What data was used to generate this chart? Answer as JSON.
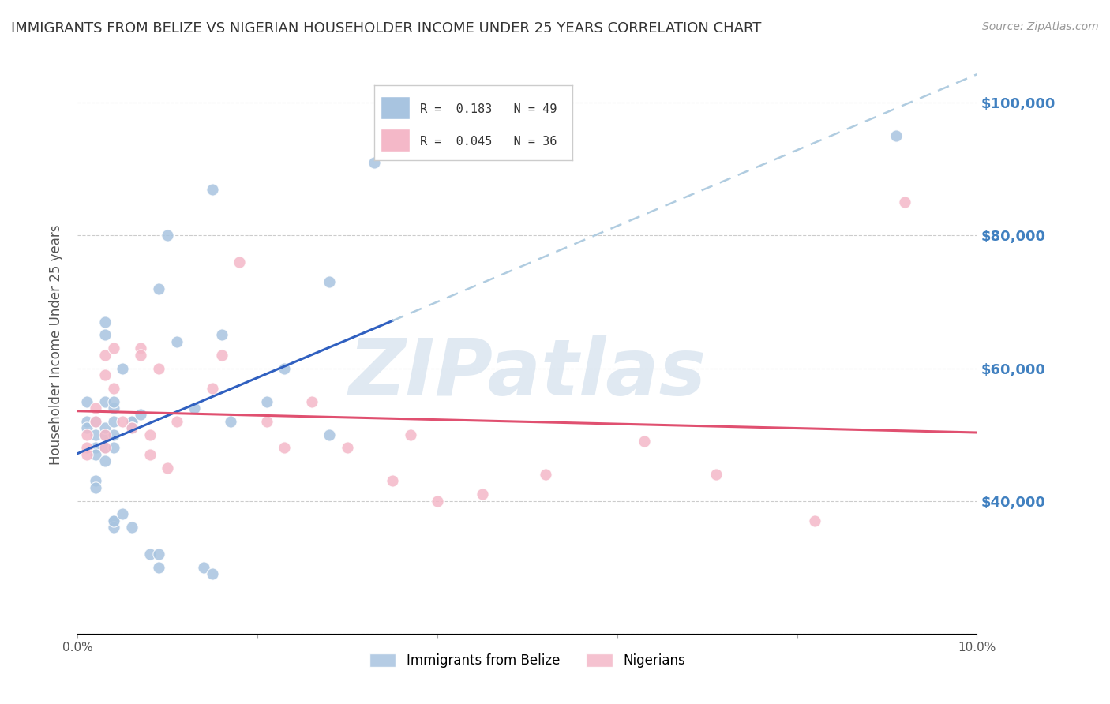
{
  "title": "IMMIGRANTS FROM BELIZE VS NIGERIAN HOUSEHOLDER INCOME UNDER 25 YEARS CORRELATION CHART",
  "source": "Source: ZipAtlas.com",
  "xlabel": "",
  "ylabel": "Householder Income Under 25 years",
  "legend_belize": "Immigrants from Belize",
  "legend_nigerian": "Nigerians",
  "R_belize": 0.183,
  "N_belize": 49,
  "R_nigerian": 0.045,
  "N_nigerian": 36,
  "xlim": [
    0.0,
    0.1
  ],
  "ylim": [
    20000,
    107000
  ],
  "yticks": [
    20000,
    40000,
    60000,
    80000,
    100000
  ],
  "ytick_labels": [
    "",
    "$40,000",
    "$60,000",
    "$80,000",
    "$100,000"
  ],
  "xticks": [
    0.0,
    0.02,
    0.04,
    0.06,
    0.08,
    0.1
  ],
  "xtick_labels": [
    "0.0%",
    "",
    "",
    "",
    "",
    "10.0%"
  ],
  "watermark": "ZIPatlas",
  "belize_color": "#a8c4e0",
  "nigerian_color": "#f4b8c8",
  "belize_line_color": "#3060c0",
  "nigerian_line_color": "#e05070",
  "dashed_line_color": "#b0cce0",
  "right_axis_color": "#4080c0",
  "belize_x": [
    0.001,
    0.001,
    0.001,
    0.002,
    0.002,
    0.002,
    0.002,
    0.002,
    0.002,
    0.003,
    0.003,
    0.003,
    0.003,
    0.003,
    0.003,
    0.003,
    0.004,
    0.004,
    0.004,
    0.004,
    0.004,
    0.004,
    0.004,
    0.004,
    0.005,
    0.005,
    0.006,
    0.006,
    0.006,
    0.006,
    0.007,
    0.008,
    0.009,
    0.009,
    0.009,
    0.01,
    0.011,
    0.013,
    0.014,
    0.015,
    0.015,
    0.016,
    0.017,
    0.021,
    0.023,
    0.028,
    0.028,
    0.033,
    0.091
  ],
  "belize_y": [
    52000,
    55000,
    51000,
    48000,
    50000,
    47000,
    43000,
    42000,
    52000,
    50000,
    51000,
    48000,
    46000,
    55000,
    65000,
    67000,
    54000,
    52000,
    50000,
    48000,
    37000,
    36000,
    37000,
    55000,
    38000,
    60000,
    52000,
    52000,
    51000,
    36000,
    53000,
    32000,
    30000,
    32000,
    72000,
    80000,
    64000,
    54000,
    30000,
    87000,
    29000,
    65000,
    52000,
    55000,
    60000,
    73000,
    50000,
    91000,
    95000
  ],
  "nigerian_x": [
    0.001,
    0.001,
    0.001,
    0.002,
    0.002,
    0.003,
    0.003,
    0.003,
    0.003,
    0.004,
    0.004,
    0.005,
    0.006,
    0.007,
    0.007,
    0.008,
    0.008,
    0.009,
    0.01,
    0.011,
    0.015,
    0.016,
    0.018,
    0.021,
    0.023,
    0.026,
    0.03,
    0.035,
    0.037,
    0.04,
    0.045,
    0.052,
    0.063,
    0.071,
    0.082,
    0.092
  ],
  "nigerian_y": [
    50000,
    48000,
    47000,
    54000,
    52000,
    50000,
    62000,
    59000,
    48000,
    57000,
    63000,
    52000,
    51000,
    63000,
    62000,
    50000,
    47000,
    60000,
    45000,
    52000,
    57000,
    62000,
    76000,
    52000,
    48000,
    55000,
    48000,
    43000,
    50000,
    40000,
    41000,
    44000,
    49000,
    44000,
    37000,
    85000
  ]
}
